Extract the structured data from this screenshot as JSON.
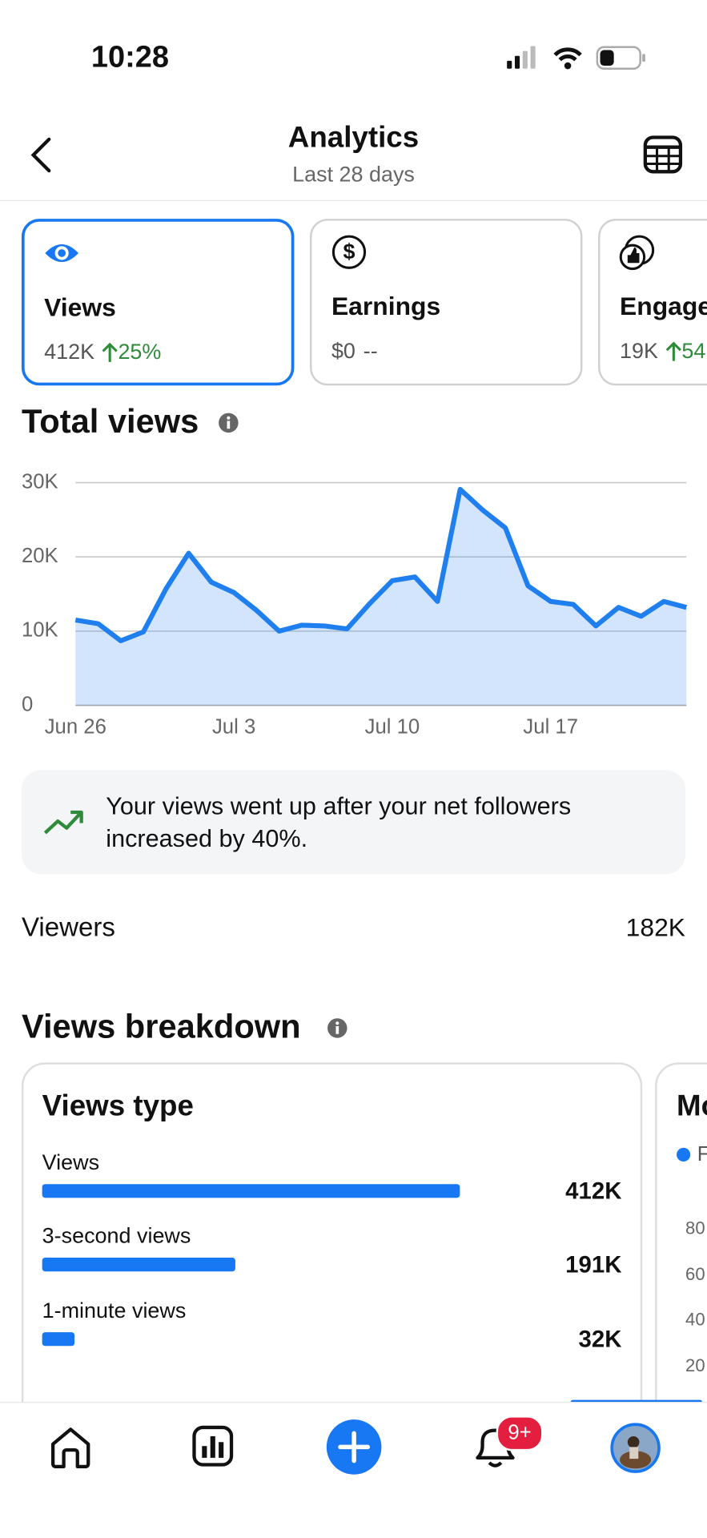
{
  "status_bar": {
    "time": "10:28"
  },
  "header": {
    "title": "Analytics",
    "subtitle": "Last 28 days"
  },
  "metric_cards": [
    {
      "title": "Views",
      "value": "412K",
      "change": "25%"
    },
    {
      "title": "Earnings",
      "value": "$0",
      "change": "--"
    },
    {
      "title": "Engage",
      "value": "19K",
      "change": "54"
    }
  ],
  "chart_data": {
    "type": "area",
    "title": "Total views",
    "categories": [
      "Jun 26",
      null,
      null,
      null,
      null,
      null,
      null,
      "Jul 3",
      null,
      null,
      null,
      null,
      null,
      null,
      "Jul 10",
      null,
      null,
      null,
      null,
      null,
      null,
      "Jul 17",
      null,
      null,
      null,
      null,
      null,
      null
    ],
    "values": [
      11500,
      11000,
      8700,
      9900,
      15700,
      20500,
      16600,
      15200,
      12800,
      10000,
      10800,
      10700,
      10300,
      13700,
      16800,
      17300,
      14000,
      29100,
      26300,
      23900,
      16100,
      14000,
      13600,
      10700,
      13200,
      12000,
      14000,
      13200
    ],
    "color": "#1f7fef",
    "ylim": [
      0,
      30000
    ],
    "yticks": [
      {
        "value": 0,
        "label": "0"
      },
      {
        "value": 10000,
        "label": "10K"
      },
      {
        "value": 20000,
        "label": "20K"
      },
      {
        "value": 30000,
        "label": "30K"
      }
    ],
    "grid": true
  },
  "insight": {
    "text": "Your views went up after your net followers increased by 40%."
  },
  "viewers": {
    "label": "Viewers",
    "value": "182K"
  },
  "breakdown": {
    "title": "Views breakdown",
    "views_type": {
      "type": "bar",
      "title": "Views type",
      "categories": [
        "Views",
        "3-second views",
        "1-minute views"
      ],
      "values": [
        412000,
        191000,
        32000
      ],
      "value_labels": [
        "412K",
        "191K",
        "32K"
      ],
      "color": "#1877f2"
    },
    "next_card": {
      "title": "Mo",
      "legend": "F",
      "yticks": [
        "80",
        "60",
        "40",
        "20"
      ]
    }
  },
  "nav": {
    "badge": "9+"
  }
}
